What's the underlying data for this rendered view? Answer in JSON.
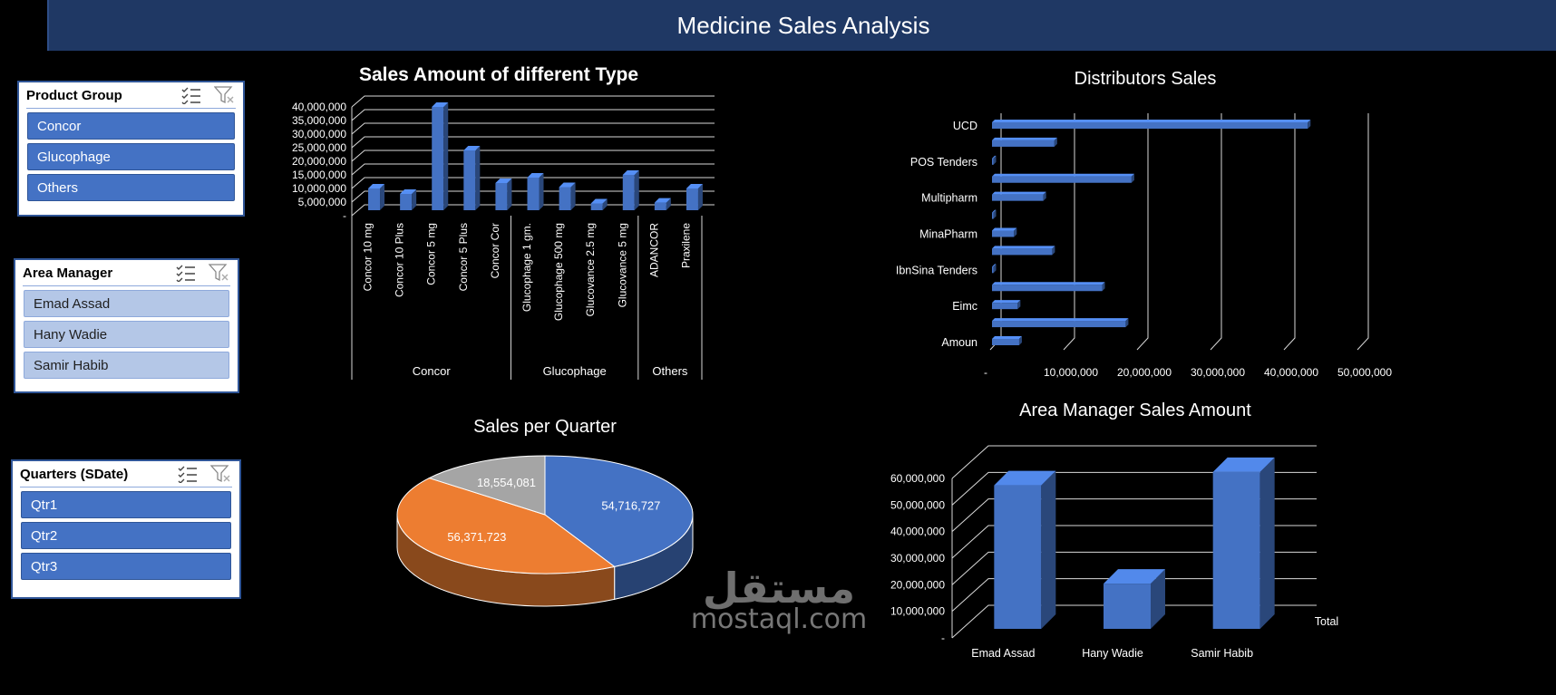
{
  "header": {
    "title": "Medicine Sales  Analysis"
  },
  "slicers": [
    {
      "title": "Product Group",
      "items": [
        {
          "label": "Concor",
          "selected": true
        },
        {
          "label": "Glucophage",
          "selected": true
        },
        {
          "label": "Others",
          "selected": true
        }
      ]
    },
    {
      "title": "Area Manager",
      "items": [
        {
          "label": "Emad Assad",
          "selected": false
        },
        {
          "label": "Hany Wadie",
          "selected": false
        },
        {
          "label": "Samir Habib",
          "selected": false
        }
      ]
    },
    {
      "title": "Quarters (SDate)",
      "items": [
        {
          "label": "Qtr1",
          "selected": true
        },
        {
          "label": "Qtr2",
          "selected": true
        },
        {
          "label": "Qtr3",
          "selected": true
        }
      ]
    }
  ],
  "watermark": {
    "arabic": "مستقل",
    "latin": "mostaql.com"
  },
  "chart_data": [
    {
      "type": "bar",
      "title": "Sales Amount of different Type",
      "categories": [
        "Concor 10 mg",
        "Concor 10 Plus",
        "Concor 5 mg",
        "Concor 5 Plus",
        "Concor Cor",
        "Glucophage 1 gm.",
        "Glucophage 500 mg",
        "Glucovance 2.5 mg",
        "Glucovance 5 mg",
        "ADANCOR",
        "Praxilene"
      ],
      "groups": [
        {
          "name": "Concor",
          "count": 5
        },
        {
          "name": "Glucophage",
          "count": 4
        },
        {
          "name": "Others",
          "count": 2
        }
      ],
      "values": [
        8000000,
        6000000,
        38000000,
        22000000,
        10000000,
        12000000,
        8500000,
        2500000,
        13000000,
        2800000,
        8000000
      ],
      "y_ticks": [
        0,
        5000000,
        10000000,
        15000000,
        20000000,
        25000000,
        30000000,
        35000000,
        40000000
      ],
      "y_tick_labels": [
        "-",
        "5,000,000",
        "10,000,000",
        "15,000,000",
        "20,000,000",
        "25,000,000",
        "30,000,000",
        "35,000,000",
        "40,000,000"
      ],
      "ylim": [
        0,
        40000000
      ],
      "grid": true,
      "color": "#4472c4"
    },
    {
      "type": "bar",
      "orientation": "horizontal",
      "title": "Distributors Sales",
      "labeled_categories": [
        "UCD",
        "POS Tenders",
        "Multipharm",
        "MinaPharm",
        "IbnSina Tenders",
        "Eimc",
        "Amoun"
      ],
      "label_every": 2,
      "values": [
        43000000,
        8500000,
        100000,
        19000000,
        7000000,
        100000,
        3000000,
        8200000,
        100000,
        15000000,
        3500000,
        18200000,
        3700000
      ],
      "x_ticks": [
        0,
        10000000,
        20000000,
        30000000,
        40000000,
        50000000
      ],
      "x_tick_labels": [
        "-",
        "10,000,000",
        "20,000,000",
        "30,000,000",
        "40,000,000",
        "50,000,000"
      ],
      "xlim": [
        0,
        50000000
      ],
      "grid": true,
      "color": "#4472c4"
    },
    {
      "type": "pie",
      "title": "Sales per Quarter",
      "values": [
        54716727,
        56371723,
        18554081
      ],
      "labels": [
        "54,716,727",
        "56,371,723",
        "18,554,081"
      ],
      "colors": [
        "#4472c4",
        "#ed7d31",
        "#a5a5a5"
      ]
    },
    {
      "type": "bar",
      "title": "Area Manager Sales Amount",
      "categories": [
        "Emad Assad",
        "Hany Wadie",
        "Samir Habib"
      ],
      "series_label": "Total",
      "values": [
        54000000,
        17000000,
        59000000
      ],
      "y_ticks": [
        0,
        10000000,
        20000000,
        30000000,
        40000000,
        50000000,
        60000000
      ],
      "y_tick_labels": [
        "-",
        "10,000,000",
        "20,000,000",
        "30,000,000",
        "40,000,000",
        "50,000,000",
        "60,000,000"
      ],
      "ylim": [
        0,
        60000000
      ],
      "grid": true,
      "color": "#4472c4"
    }
  ]
}
